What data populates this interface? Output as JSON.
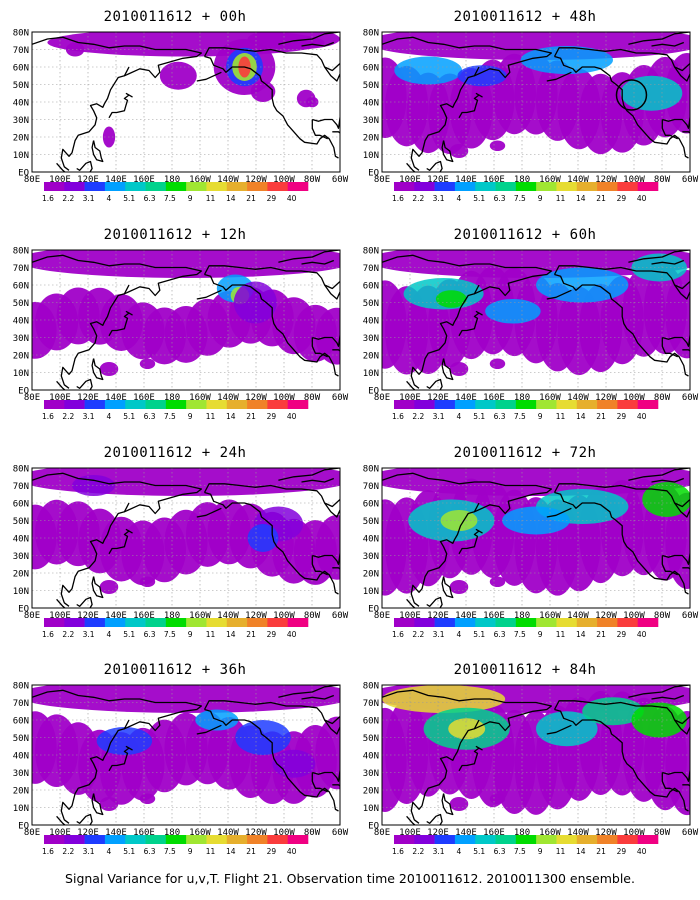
{
  "panels": [
    {
      "title": "2010011612 + 00h",
      "level": 0,
      "ring": false
    },
    {
      "title": "2010011612 + 48h",
      "level": 4,
      "ring": true
    },
    {
      "title": "2010011612 + 12h",
      "level": 1,
      "ring": false
    },
    {
      "title": "2010011612 + 60h",
      "level": 5,
      "ring": false
    },
    {
      "title": "2010011612 + 24h",
      "level": 2,
      "ring": false
    },
    {
      "title": "2010011612 + 72h",
      "level": 6,
      "ring": false
    },
    {
      "title": "2010011612 + 36h",
      "level": 3,
      "ring": false
    },
    {
      "title": "2010011612 + 84h",
      "level": 7,
      "ring": false
    }
  ],
  "lat_labels": [
    "EQ",
    "10N",
    "20N",
    "30N",
    "40N",
    "50N",
    "60N",
    "70N",
    "80N"
  ],
  "lon_labels": [
    "80E",
    "100E",
    "120E",
    "140E",
    "160E",
    "180",
    "160W",
    "140W",
    "120W",
    "100W",
    "80W",
    "60W"
  ],
  "colorbar": {
    "labels": [
      "1.6",
      "2.2",
      "3.1",
      "4",
      "5.1",
      "6.3",
      "7.5",
      "9",
      "11",
      "14",
      "21",
      "29",
      "40"
    ],
    "colors": [
      "#a000c8",
      "#8200dc",
      "#1e3cff",
      "#00a0ff",
      "#00c8c8",
      "#00d28c",
      "#00dc00",
      "#a0e632",
      "#e6dc32",
      "#e6af2d",
      "#f08228",
      "#fa3c3c",
      "#f00082"
    ]
  },
  "footer": "Signal Variance for u,v,T. Flight 21. Observation time 2010011612. 2010011300 ensemble."
}
